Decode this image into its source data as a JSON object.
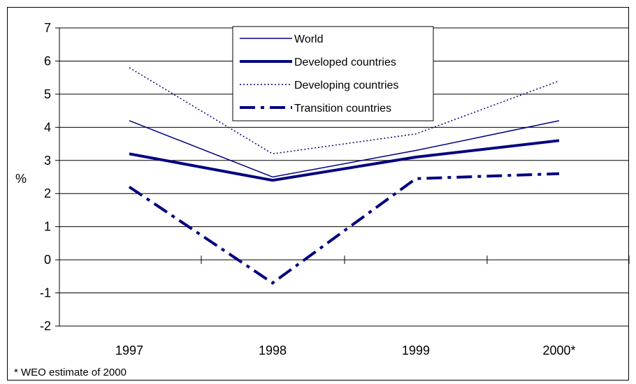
{
  "chart_data": {
    "type": "line",
    "categories": [
      "1997",
      "1998",
      "1999",
      "2000*"
    ],
    "ylabel": "%",
    "ylim": [
      -2,
      7
    ],
    "ytick_labels": [
      "7",
      "6",
      "5",
      "4",
      "3",
      "2",
      "1",
      "0",
      "-1",
      "-2"
    ],
    "grid": true,
    "legend_position": "top-center",
    "series": [
      {
        "name": "World",
        "values": [
          4.2,
          2.5,
          3.3,
          4.2
        ],
        "color": "#000080",
        "style": "thin-solid"
      },
      {
        "name": "Developed countries",
        "values": [
          3.2,
          2.4,
          3.1,
          3.6
        ],
        "color": "#000080",
        "style": "thick-solid"
      },
      {
        "name": "Developing countries",
        "values": [
          5.8,
          3.2,
          3.8,
          5.4
        ],
        "color": "#000080",
        "style": "dotted"
      },
      {
        "name": "Transition countries",
        "values": [
          2.2,
          -0.7,
          2.45,
          2.6
        ],
        "color": "#000080",
        "style": "dash-dot"
      }
    ],
    "footnote": "* WEO estimate of 2000"
  }
}
